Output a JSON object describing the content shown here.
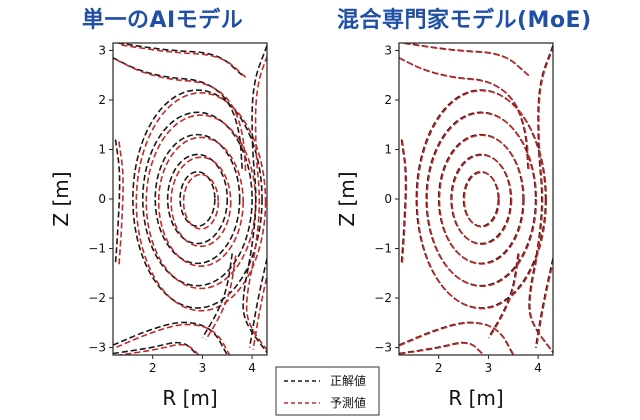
{
  "titles": {
    "left": "単一のAIモデル",
    "right": "混合専門家モデル(MoE)"
  },
  "legend": {
    "truth": "正解値",
    "predicted": "予測値"
  },
  "colors": {
    "title": "#1f4fa6",
    "truth": "#1a1a1a",
    "predicted": "#c62828"
  },
  "chart_data": [
    {
      "type": "contour",
      "title": "単一のAIモデル",
      "xlabel": "R [m]",
      "ylabel": "Z [m]",
      "xlim": [
        1.2,
        4.3
      ],
      "ylim": [
        -3.15,
        3.15
      ],
      "xticks": [
        2,
        3,
        4
      ],
      "yticks": [
        -3,
        -2,
        -1,
        0,
        1,
        2,
        3
      ],
      "center": [
        2.9,
        0.0
      ],
      "contour_sizes": [
        [
          0.35,
          0.55
        ],
        [
          0.6,
          0.9
        ],
        [
          0.85,
          1.3
        ],
        [
          1.1,
          1.75
        ],
        [
          1.3,
          2.2
        ]
      ],
      "series": [
        {
          "name": "正解値",
          "style": "dashed"
        },
        {
          "name": "予測値",
          "style": "dashed"
        }
      ],
      "prediction_shift": 0.07
    },
    {
      "type": "contour",
      "title": "混合専門家モデル(MoE)",
      "xlabel": "R [m]",
      "ylabel": "Z [m]",
      "xlim": [
        1.2,
        4.3
      ],
      "ylim": [
        -3.15,
        3.15
      ],
      "xticks": [
        2,
        3,
        4
      ],
      "yticks": [
        -3,
        -2,
        -1,
        0,
        1,
        2,
        3
      ],
      "center": [
        2.85,
        0.0
      ],
      "contour_sizes": [
        [
          0.35,
          0.55
        ],
        [
          0.6,
          0.9
        ],
        [
          0.85,
          1.3
        ],
        [
          1.1,
          1.75
        ],
        [
          1.3,
          2.2
        ]
      ],
      "series": [
        {
          "name": "正解値",
          "style": "dashed"
        },
        {
          "name": "予測値",
          "style": "dashed"
        }
      ],
      "prediction_shift": 0.015
    }
  ]
}
